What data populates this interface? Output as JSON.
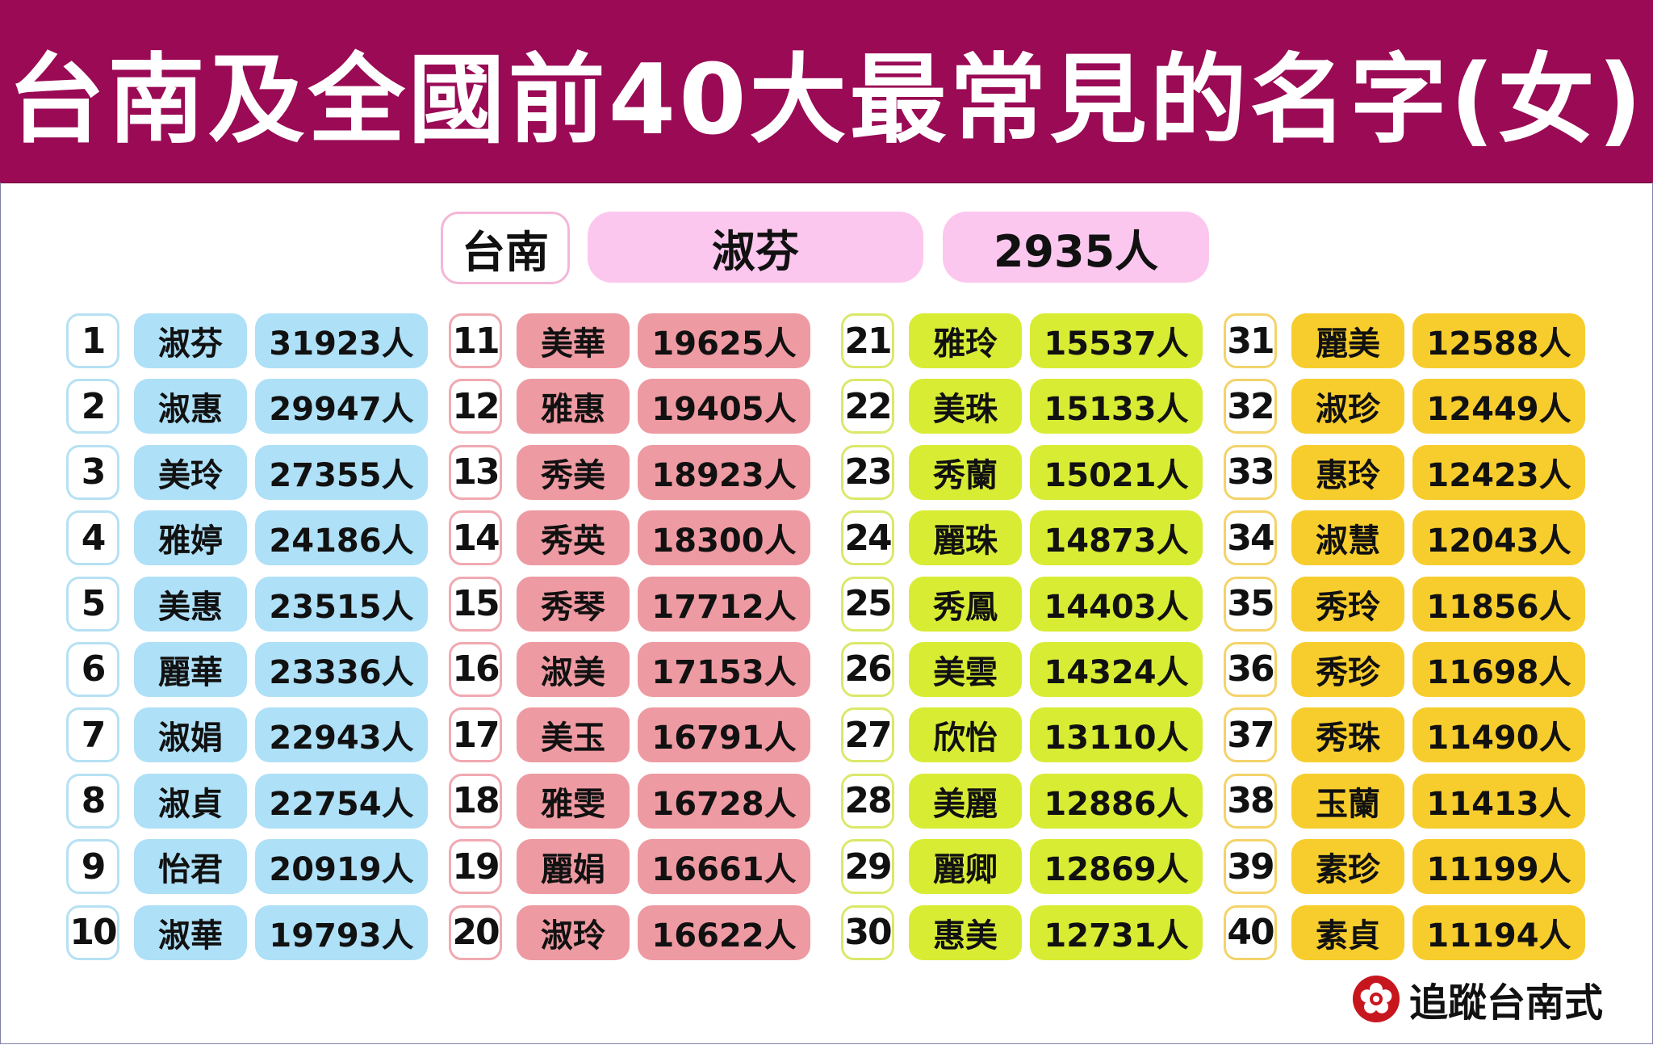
{
  "title": "台南及全國前40大最常見的名字(女)",
  "summary": {
    "city": "台南",
    "name": "淑芬",
    "count": "2935人"
  },
  "colors": {
    "header": "#9a0a55",
    "group1": "#aee0f7",
    "group2": "#ee9aa2",
    "group3": "#d8ec34",
    "group4": "#f7cd2d",
    "summary_pill": "#fcc7ee"
  },
  "columns": [
    {
      "rows": [
        {
          "rank": "1",
          "name": "淑芬",
          "count": "31923人"
        },
        {
          "rank": "2",
          "name": "淑惠",
          "count": "29947人"
        },
        {
          "rank": "3",
          "name": "美玲",
          "count": "27355人"
        },
        {
          "rank": "4",
          "name": "雅婷",
          "count": "24186人"
        },
        {
          "rank": "5",
          "name": "美惠",
          "count": "23515人"
        },
        {
          "rank": "6",
          "name": "麗華",
          "count": "23336人"
        },
        {
          "rank": "7",
          "name": "淑娟",
          "count": "22943人"
        },
        {
          "rank": "8",
          "name": "淑貞",
          "count": "22754人"
        },
        {
          "rank": "9",
          "name": "怡君",
          "count": "20919人"
        },
        {
          "rank": "10",
          "name": "淑華",
          "count": "19793人"
        }
      ]
    },
    {
      "rows": [
        {
          "rank": "11",
          "name": "美華",
          "count": "19625人"
        },
        {
          "rank": "12",
          "name": "雅惠",
          "count": "19405人"
        },
        {
          "rank": "13",
          "name": "秀美",
          "count": "18923人"
        },
        {
          "rank": "14",
          "name": "秀英",
          "count": "18300人"
        },
        {
          "rank": "15",
          "name": "秀琴",
          "count": "17712人"
        },
        {
          "rank": "16",
          "name": "淑美",
          "count": "17153人"
        },
        {
          "rank": "17",
          "name": "美玉",
          "count": "16791人"
        },
        {
          "rank": "18",
          "name": "雅雯",
          "count": "16728人"
        },
        {
          "rank": "19",
          "name": "麗娟",
          "count": "16661人"
        },
        {
          "rank": "20",
          "name": "淑玲",
          "count": "16622人"
        }
      ]
    },
    {
      "rows": [
        {
          "rank": "21",
          "name": "雅玲",
          "count": "15537人"
        },
        {
          "rank": "22",
          "name": "美珠",
          "count": "15133人"
        },
        {
          "rank": "23",
          "name": "秀蘭",
          "count": "15021人"
        },
        {
          "rank": "24",
          "name": "麗珠",
          "count": "14873人"
        },
        {
          "rank": "25",
          "name": "秀鳳",
          "count": "14403人"
        },
        {
          "rank": "26",
          "name": "美雲",
          "count": "14324人"
        },
        {
          "rank": "27",
          "name": "欣怡",
          "count": "13110人"
        },
        {
          "rank": "28",
          "name": "美麗",
          "count": "12886人"
        },
        {
          "rank": "29",
          "name": "麗卿",
          "count": "12869人"
        },
        {
          "rank": "30",
          "name": "惠美",
          "count": "12731人"
        }
      ]
    },
    {
      "rows": [
        {
          "rank": "31",
          "name": "麗美",
          "count": "12588人"
        },
        {
          "rank": "32",
          "name": "淑珍",
          "count": "12449人"
        },
        {
          "rank": "33",
          "name": "惠玲",
          "count": "12423人"
        },
        {
          "rank": "34",
          "name": "淑慧",
          "count": "12043人"
        },
        {
          "rank": "35",
          "name": "秀玲",
          "count": "11856人"
        },
        {
          "rank": "36",
          "name": "秀珍",
          "count": "11698人"
        },
        {
          "rank": "37",
          "name": "秀珠",
          "count": "11490人"
        },
        {
          "rank": "38",
          "name": "玉蘭",
          "count": "11413人"
        },
        {
          "rank": "39",
          "name": "素珍",
          "count": "11199人"
        },
        {
          "rank": "40",
          "name": "素貞",
          "count": "11194人"
        }
      ]
    }
  ],
  "footer": {
    "text": "追蹤台南式",
    "icon": "plum-blossom-icon"
  }
}
